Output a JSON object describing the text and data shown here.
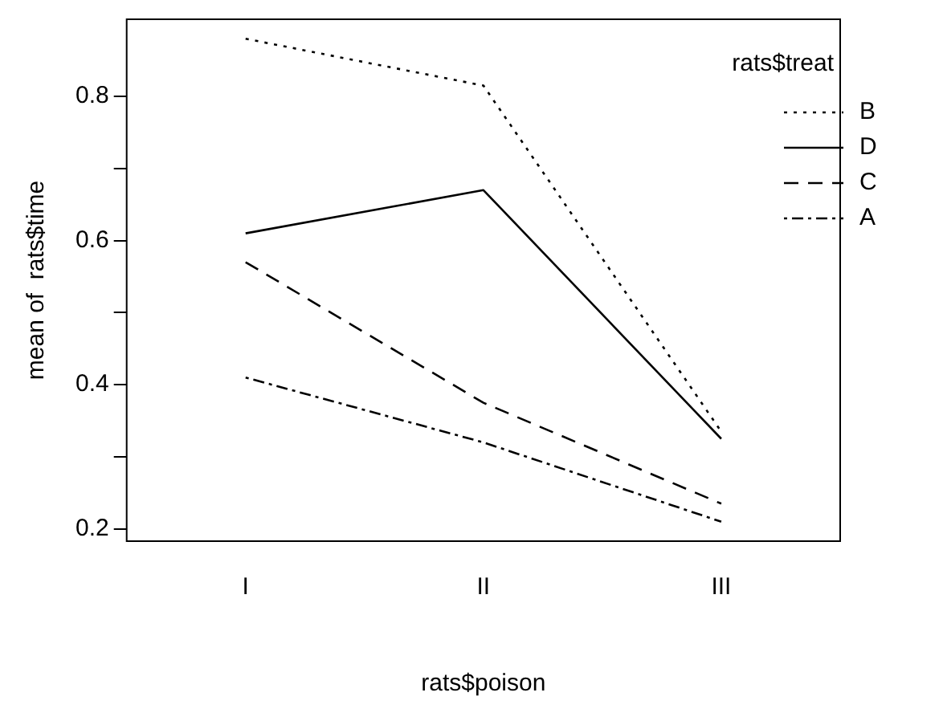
{
  "chart_data": {
    "type": "line",
    "xlabel": "rats$poison",
    "ylabel": "mean of  rats$time",
    "legend_title": "rats$treat",
    "categories": [
      "I",
      "II",
      "III"
    ],
    "series": [
      {
        "name": "B",
        "color": "#000000",
        "line_style": "dotted",
        "values": [
          0.88,
          0.815,
          0.335
        ]
      },
      {
        "name": "D",
        "color": "#000000",
        "line_style": "solid",
        "values": [
          0.61,
          0.67,
          0.325
        ]
      },
      {
        "name": "C",
        "color": "#000000",
        "line_style": "dashed",
        "values": [
          0.57,
          0.375,
          0.235
        ]
      },
      {
        "name": "A",
        "color": "#000000",
        "line_style": "dashdot",
        "values": [
          0.41,
          0.32,
          0.21
        ]
      }
    ],
    "ylim": [
      0.183,
      0.907
    ],
    "yticks": [
      0.2,
      {
        "value": 0.3,
        "label": null
      },
      0.4,
      {
        "value": 0.5,
        "label": null
      },
      0.6,
      {
        "value": 0.7,
        "label": null
      },
      0.8
    ],
    "grid": false,
    "legend": "right",
    "marker": "none"
  }
}
